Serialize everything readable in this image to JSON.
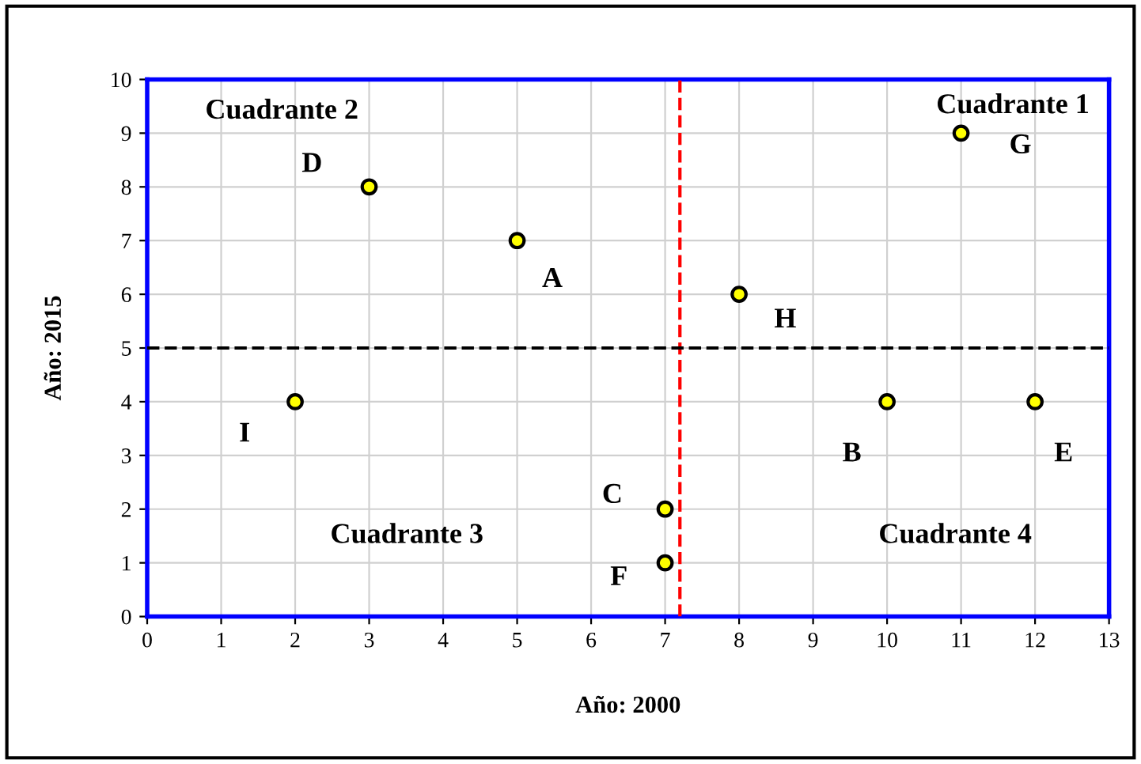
{
  "chart_data": {
    "type": "scatter",
    "xlabel": "Año: 2000",
    "ylabel": "Año: 2015",
    "x": [
      5,
      10,
      7,
      3,
      12,
      7,
      11,
      8,
      2
    ],
    "values": [
      7,
      4,
      2,
      8,
      4,
      1,
      9,
      6,
      4
    ],
    "value_labels": [
      "A",
      "B",
      "C",
      "D",
      "E",
      "F",
      "G",
      "H",
      "I"
    ],
    "color": "#ffff00",
    "marker": "circle",
    "xlim": [
      0,
      13
    ],
    "xticks": [
      0,
      1,
      2,
      3,
      4,
      5,
      6,
      7,
      8,
      9,
      10,
      11,
      12,
      13
    ],
    "ylim": [
      0,
      10
    ],
    "yticks": [
      0,
      1,
      2,
      3,
      4,
      5,
      6,
      7,
      8,
      9,
      10
    ],
    "grid": true,
    "legend": false,
    "ref_lines": [
      {
        "axis": "x",
        "value": 7.2,
        "color": "#ff0000",
        "line_style": "dashed"
      },
      {
        "axis": "y",
        "value": 5,
        "color": "#000000",
        "line_style": "dashed"
      }
    ],
    "annotations": [
      "Cuadrante 1",
      "Cuadrante 2",
      "Cuadrante 3",
      "Cuadrante 4"
    ]
  }
}
